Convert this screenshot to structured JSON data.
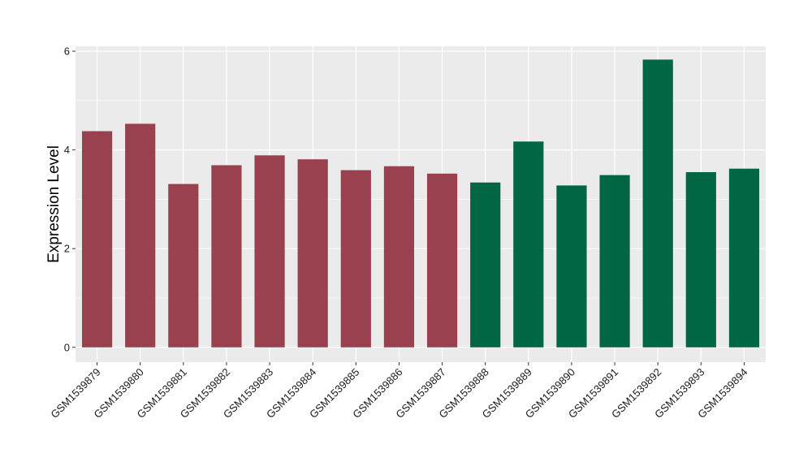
{
  "chart_data": {
    "type": "bar",
    "title": "",
    "xlabel": "",
    "ylabel": "Expression Level",
    "ylim": [
      -0.3,
      6.1
    ],
    "yticks": [
      0,
      2,
      4,
      6
    ],
    "grid": true,
    "categories": [
      "GSM1539879",
      "GSM1539880",
      "GSM1539881",
      "GSM1539882",
      "GSM1539883",
      "GSM1539884",
      "GSM1539885",
      "GSM1539886",
      "GSM1539887",
      "GSM1539888",
      "GSM1539889",
      "GSM1539890",
      "GSM1539891",
      "GSM1539892",
      "GSM1539893",
      "GSM1539894"
    ],
    "values": [
      4.38,
      4.53,
      3.31,
      3.69,
      3.89,
      3.81,
      3.59,
      3.67,
      3.52,
      3.34,
      4.17,
      3.28,
      3.49,
      5.83,
      3.55,
      3.62
    ],
    "groups": [
      "a",
      "a",
      "a",
      "a",
      "a",
      "a",
      "a",
      "a",
      "a",
      "b",
      "b",
      "b",
      "b",
      "b",
      "b",
      "b"
    ],
    "group_colors": {
      "a": "#99414f",
      "b": "#006644"
    },
    "panel_background": "#ebebeb",
    "gridline_color": "#ffffff"
  }
}
